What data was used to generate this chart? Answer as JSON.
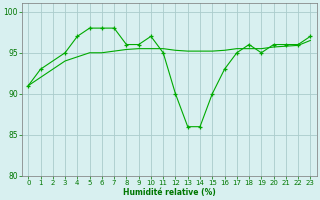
{
  "line1_x": [
    0,
    1,
    3,
    4,
    5,
    6,
    7,
    8,
    9,
    10,
    11,
    12,
    13,
    14,
    15,
    16,
    17,
    18,
    19,
    20,
    21,
    22,
    23
  ],
  "line1_y": [
    91,
    93,
    95,
    97,
    98,
    98,
    98,
    96,
    96,
    97,
    95,
    90,
    86,
    86,
    90,
    93,
    95,
    96,
    95,
    96,
    96,
    96,
    97
  ],
  "line2_x": [
    0,
    1,
    2,
    3,
    4,
    5,
    6,
    7,
    8,
    9,
    10,
    11,
    12,
    13,
    14,
    15,
    16,
    17,
    18,
    19,
    20,
    21,
    22,
    23
  ],
  "line2_y": [
    91,
    92,
    93,
    94,
    94.5,
    95,
    95,
    95.2,
    95.4,
    95.5,
    95.5,
    95.5,
    95.3,
    95.2,
    95.2,
    95.2,
    95.3,
    95.5,
    95.5,
    95.5,
    95.7,
    95.8,
    95.9,
    96.5
  ],
  "bg_color": "#d8f0f0",
  "grid_color": "#aacccc",
  "line_color": "#00aa00",
  "xlabel": "Humidité relative (%)",
  "ylim": [
    80,
    101
  ],
  "xlim": [
    -0.5,
    23.5
  ],
  "yticks": [
    80,
    85,
    90,
    95,
    100
  ],
  "xticks": [
    0,
    1,
    2,
    3,
    4,
    5,
    6,
    7,
    8,
    9,
    10,
    11,
    12,
    13,
    14,
    15,
    16,
    17,
    18,
    19,
    20,
    21,
    22,
    23
  ],
  "xlabel_fontsize": 5.5,
  "tick_fontsize": 5,
  "line_width": 0.8,
  "marker_size": 3.5
}
